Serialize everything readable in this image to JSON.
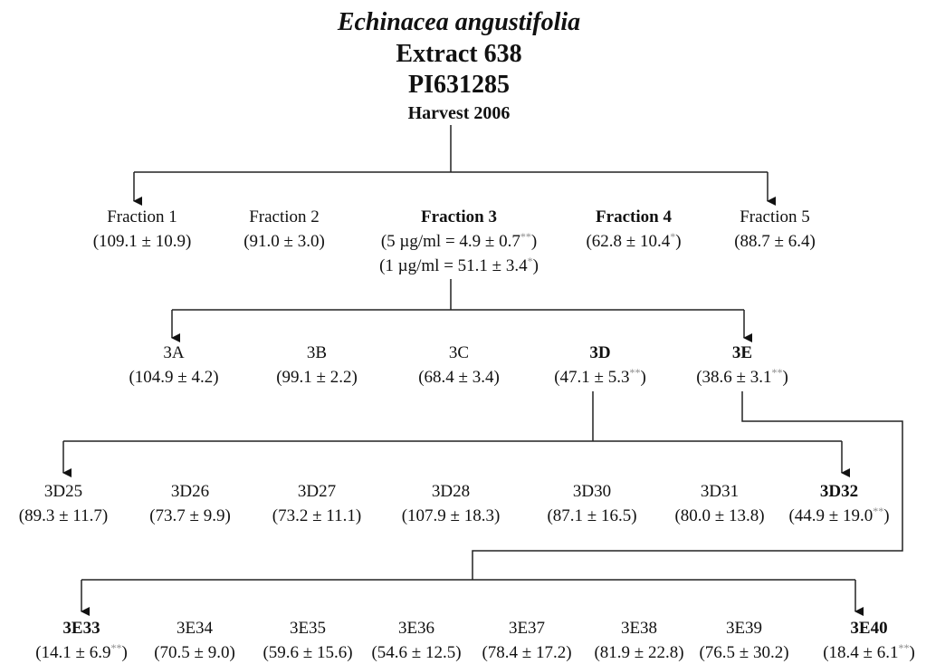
{
  "header": {
    "species": "Echinacea angustifolia",
    "extract": "Extract 638",
    "accession": "PI631285",
    "harvest": "Harvest 2006"
  },
  "rows": [
    [
      {
        "label": "Fraction 1",
        "emphasis": false,
        "lines": [
          {
            "pre": "(109.1 ± 10.9)"
          }
        ]
      },
      {
        "label": "Fraction 2",
        "emphasis": false,
        "lines": [
          {
            "pre": "(91.0 ± 3.0)"
          }
        ]
      },
      {
        "label": "Fraction 3",
        "emphasis": true,
        "lines": [
          {
            "pre": "(5 µg/ml = 4.9 ± 0.7",
            "sup": "**",
            "post": ")"
          },
          {
            "pre": "(1 µg/ml = 51.1 ± 3.4",
            "sup": "*",
            "post": ")"
          }
        ]
      },
      {
        "label": "Fraction 4",
        "emphasis": true,
        "lines": [
          {
            "pre": "(62.8 ± 10.4",
            "sup": "*",
            "post": ")"
          }
        ]
      },
      {
        "label": "Fraction 5",
        "emphasis": false,
        "lines": [
          {
            "pre": "(88.7 ± 6.4)"
          }
        ]
      }
    ],
    [
      {
        "label": "3A",
        "emphasis": false,
        "lines": [
          {
            "pre": "(104.9 ± 4.2)"
          }
        ]
      },
      {
        "label": "3B",
        "emphasis": false,
        "lines": [
          {
            "pre": "(99.1 ± 2.2)"
          }
        ]
      },
      {
        "label": "3C",
        "emphasis": false,
        "lines": [
          {
            "pre": "(68.4 ± 3.4)"
          }
        ]
      },
      {
        "label": "3D",
        "emphasis": true,
        "lines": [
          {
            "pre": "(47.1 ± 5.3",
            "sup": "**",
            "post": ")"
          }
        ]
      },
      {
        "label": "3E",
        "emphasis": true,
        "lines": [
          {
            "pre": "(38.6 ± 3.1",
            "sup": "**",
            "post": ")"
          }
        ]
      }
    ],
    [
      {
        "label": "3D25",
        "emphasis": false,
        "lines": [
          {
            "pre": "(89.3 ± 11.7)"
          }
        ]
      },
      {
        "label": "3D26",
        "emphasis": false,
        "lines": [
          {
            "pre": "(73.7 ± 9.9)"
          }
        ]
      },
      {
        "label": "3D27",
        "emphasis": false,
        "lines": [
          {
            "pre": "(73.2 ± 11.1)"
          }
        ]
      },
      {
        "label": "3D28",
        "emphasis": false,
        "lines": [
          {
            "pre": "(107.9 ± 18.3)"
          }
        ]
      },
      {
        "label": "3D30",
        "emphasis": false,
        "lines": [
          {
            "pre": "(87.1 ± 16.5)"
          }
        ]
      },
      {
        "label": "3D31",
        "emphasis": false,
        "lines": [
          {
            "pre": "(80.0 ± 13.8)"
          }
        ]
      },
      {
        "label": "3D32",
        "emphasis": true,
        "lines": [
          {
            "pre": "(44.9 ± 19.0",
            "sup": "**",
            "post": ")"
          }
        ]
      }
    ],
    [
      {
        "label": "3E33",
        "emphasis": true,
        "lines": [
          {
            "pre": "(14.1 ± 6.9",
            "sup": "**",
            "post": ")"
          }
        ]
      },
      {
        "label": "3E34",
        "emphasis": false,
        "lines": [
          {
            "pre": "(70.5 ± 9.0)"
          }
        ]
      },
      {
        "label": "3E35",
        "emphasis": false,
        "lines": [
          {
            "pre": "(59.6 ± 15.6)"
          }
        ]
      },
      {
        "label": "3E36",
        "emphasis": false,
        "lines": [
          {
            "pre": "(54.6 ± 12.5)"
          }
        ]
      },
      {
        "label": "3E37",
        "emphasis": false,
        "lines": [
          {
            "pre": "(78.4 ± 17.2)"
          }
        ]
      },
      {
        "label": "3E38",
        "emphasis": false,
        "lines": [
          {
            "pre": "(81.9 ± 22.8)"
          }
        ]
      },
      {
        "label": "3E39",
        "emphasis": false,
        "lines": [
          {
            "pre": "(76.5 ± 30.2)"
          }
        ]
      },
      {
        "label": "3E40",
        "emphasis": true,
        "lines": [
          {
            "pre": "(18.4 ± 6.1",
            "sup": "**",
            "post": ")"
          }
        ]
      }
    ]
  ]
}
